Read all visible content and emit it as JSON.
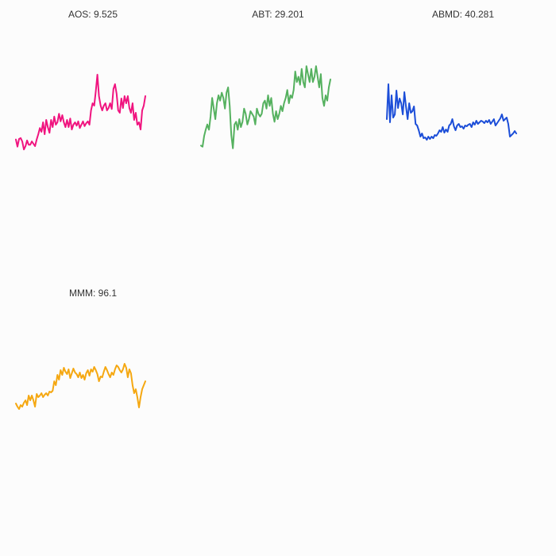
{
  "chart_data": [
    {
      "type": "line",
      "title": "AOS: 9.525",
      "color": "#f0147f",
      "grid": false,
      "ylim": [
        0,
        20
      ],
      "x": [
        0,
        1,
        2,
        3,
        4,
        5,
        6,
        7,
        8,
        9,
        10,
        11,
        12,
        13,
        14,
        15,
        16,
        17,
        18,
        19,
        20,
        21,
        22,
        23,
        24,
        25,
        26,
        27,
        28,
        29,
        30,
        31,
        32,
        33,
        34,
        35,
        36,
        37,
        38,
        39,
        40,
        41,
        42,
        43,
        44,
        45,
        46,
        47,
        48,
        49,
        50,
        51,
        52,
        53,
        54,
        55,
        56,
        57,
        58,
        59,
        60,
        61,
        62,
        63,
        64,
        65,
        66,
        67,
        68,
        69,
        70,
        71,
        72,
        73,
        74,
        75,
        76,
        77,
        78,
        79,
        80,
        81
      ],
      "values": [
        2.4,
        0.9,
        2.5,
        2.7,
        2.0,
        0.3,
        1.0,
        2.2,
        1.3,
        1.3,
        2.0,
        1.5,
        1.0,
        2.4,
        3.5,
        4.8,
        4.0,
        6.0,
        3.5,
        6.5,
        5.0,
        3.8,
        6.5,
        5.0,
        7.2,
        5.5,
        6.0,
        7.8,
        6.2,
        7.5,
        6.0,
        5.0,
        6.5,
        5.0,
        6.8,
        4.5,
        5.5,
        6.0,
        5.3,
        6.2,
        4.8,
        5.5,
        6.2,
        5.2,
        5.8,
        6.2,
        5.5,
        8.5,
        10.0,
        9.5,
        12.5,
        16.0,
        11.5,
        9.5,
        8.5,
        9.5,
        10.0,
        8.5,
        9.0,
        10.0,
        8.8,
        13.0,
        14.0,
        12.0,
        8.5,
        8.0,
        11.0,
        9.0,
        11.5,
        10.0,
        11.5,
        9.0,
        8.0,
        10.0,
        6.5,
        8.0,
        5.5,
        6.0,
        4.5,
        8.5,
        9.5,
        11.5
      ]
    },
    {
      "type": "line",
      "title": "ABT: 29.201",
      "color": "#55b15f",
      "grid": false,
      "ylim": [
        20,
        38
      ],
      "x": [
        0,
        1,
        2,
        3,
        4,
        5,
        6,
        7,
        8,
        9,
        10,
        11,
        12,
        13,
        14,
        15,
        16,
        17,
        18,
        19,
        20,
        21,
        22,
        23,
        24,
        25,
        26,
        27,
        28,
        29,
        30,
        31,
        32,
        33,
        34,
        35,
        36,
        37,
        38,
        39,
        40,
        41,
        42,
        43,
        44,
        45,
        46,
        47,
        48,
        49,
        50,
        51,
        52,
        53,
        54,
        55,
        56,
        57,
        58,
        59,
        60,
        61,
        62,
        63,
        64,
        65,
        66,
        67,
        68,
        69,
        70,
        71,
        72,
        73,
        74,
        75,
        76,
        77,
        78,
        79,
        80,
        81
      ],
      "values": [
        21.0,
        20.8,
        22.8,
        24.0,
        25.0,
        24.0,
        26.5,
        30.0,
        28.0,
        26.0,
        29.0,
        30.5,
        29.5,
        31.0,
        30.0,
        28.0,
        31.0,
        32.0,
        28.5,
        23.0,
        20.5,
        25.0,
        25.5,
        24.0,
        26.0,
        24.5,
        25.5,
        28.0,
        27.0,
        25.0,
        26.0,
        27.5,
        27.0,
        26.5,
        25.0,
        28.0,
        27.0,
        26.5,
        27.0,
        29.0,
        29.5,
        28.0,
        30.5,
        28.5,
        30.0,
        27.0,
        25.5,
        27.5,
        26.0,
        27.0,
        28.5,
        27.5,
        29.0,
        30.0,
        31.5,
        29.0,
        30.5,
        30.0,
        31.5,
        35.0,
        33.0,
        34.0,
        32.5,
        35.5,
        33.0,
        32.0,
        36.0,
        34.5,
        33.0,
        35.5,
        33.0,
        34.0,
        36.0,
        34.0,
        32.0,
        34.5,
        30.0,
        28.5,
        30.5,
        29.5,
        32.0,
        33.5
      ]
    },
    {
      "type": "line",
      "title": "ABMD: 40.281",
      "color": "#1c4ed8",
      "grid": false,
      "ylim": [
        15,
        75
      ],
      "x": [
        0,
        1,
        2,
        3,
        4,
        5,
        6,
        7,
        8,
        9,
        10,
        11,
        12,
        13,
        14,
        15,
        16,
        17,
        18,
        19,
        20,
        21,
        22,
        23,
        24,
        25,
        26,
        27,
        28,
        29,
        30,
        31,
        32,
        33,
        34,
        35,
        36,
        37,
        38,
        39,
        40,
        41,
        42,
        43,
        44,
        45,
        46,
        47,
        48,
        49,
        50,
        51,
        52,
        53,
        54,
        55,
        56,
        57,
        58,
        59,
        60,
        61,
        62,
        63,
        64,
        65,
        66,
        67,
        68,
        69,
        70,
        71,
        72,
        73,
        74,
        75,
        76,
        77,
        78,
        79,
        80,
        81
      ],
      "values": [
        35.0,
        57.0,
        33.0,
        50.0,
        36.0,
        38.0,
        53.0,
        42.0,
        48.0,
        45.0,
        38.0,
        52.0,
        43.0,
        35.0,
        45.0,
        39.0,
        40.0,
        43.0,
        32.0,
        31.0,
        28.0,
        24.0,
        26.0,
        23.0,
        23.5,
        22.0,
        24.0,
        22.5,
        24.0,
        23.0,
        25.0,
        24.5,
        26.0,
        28.0,
        27.0,
        30.0,
        26.5,
        28.5,
        27.0,
        31.0,
        32.0,
        35.0,
        30.5,
        28.0,
        31.0,
        32.0,
        30.0,
        30.5,
        29.0,
        31.0,
        30.5,
        31.5,
        32.0,
        30.0,
        33.0,
        31.5,
        34.0,
        32.0,
        33.0,
        34.0,
        33.5,
        32.5,
        34.0,
        33.0,
        34.5,
        32.0,
        33.5,
        35.0,
        31.0,
        32.5,
        34.0,
        35.5,
        38.0,
        34.0,
        35.0,
        36.0,
        32.0,
        24.0,
        25.0,
        26.0,
        27.5,
        26.0
      ]
    },
    {
      "type": "line",
      "title": "MMM: 96.1",
      "color": "#f5a812",
      "grid": false,
      "ylim": [
        50,
        170
      ],
      "x": [
        0,
        1,
        2,
        3,
        4,
        5,
        6,
        7,
        8,
        9,
        10,
        11,
        12,
        13,
        14,
        15,
        16,
        17,
        18,
        19,
        20,
        21,
        22,
        23,
        24,
        25,
        26,
        27,
        28,
        29,
        30,
        31,
        32,
        33,
        34,
        35,
        36,
        37,
        38,
        39,
        40,
        41,
        42,
        43,
        44,
        45,
        46,
        47,
        48,
        49,
        50,
        51,
        52,
        53,
        54,
        55,
        56,
        57,
        58,
        59,
        60,
        61,
        62,
        63,
        64,
        65,
        66,
        67,
        68,
        69,
        70,
        71,
        72,
        73,
        74,
        75,
        76,
        77,
        78,
        79,
        80,
        81
      ],
      "values": [
        82,
        78,
        75,
        80,
        78,
        83,
        86,
        80,
        92,
        86,
        92,
        86,
        78,
        94,
        90,
        92,
        95,
        90,
        93,
        95,
        92,
        97,
        96,
        98,
        110,
        105,
        118,
        112,
        124,
        118,
        127,
        122,
        119,
        125,
        114,
        120,
        126,
        121,
        119,
        115,
        121,
        114,
        118,
        112,
        120,
        124,
        117,
        125,
        122,
        128,
        124,
        119,
        110,
        116,
        115,
        122,
        128,
        124,
        119,
        115,
        121,
        118,
        125,
        130,
        128,
        124,
        121,
        125,
        132,
        127,
        115,
        125,
        120,
        105,
        95,
        100,
        90,
        77,
        90,
        100,
        105,
        110
      ]
    }
  ]
}
